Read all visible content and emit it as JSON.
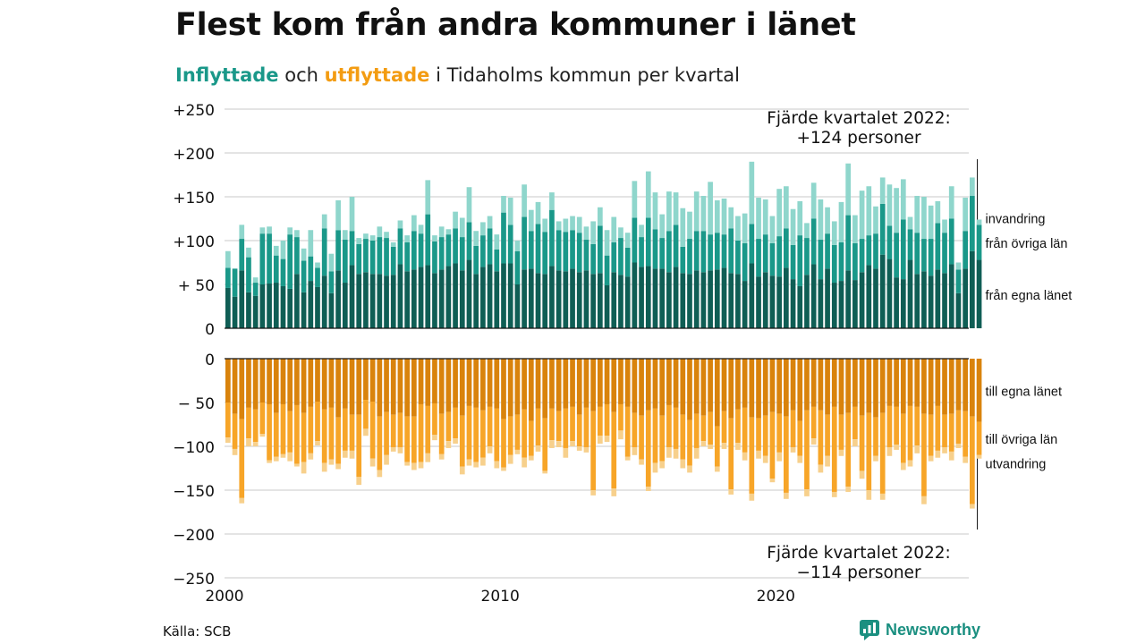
{
  "title": "Flest kom från andra kommuner i länet",
  "subtitle": {
    "in_word": "Inflyttade",
    "conj": "och",
    "out_word": "utflyttade",
    "rest": "i Tidaholms kommun per kvartal"
  },
  "source": "Källa: SCB",
  "brand": "Newsworthy",
  "colors": {
    "in_egna": "#0f5e55",
    "in_ovriga": "#1a9889",
    "in_invandring": "#8fd6cc",
    "out_egna": "#d9830c",
    "out_ovriga": "#f7a528",
    "out_utvandring": "#f7d08c"
  },
  "chart_data": {
    "type": "bar",
    "stacked": true,
    "x_start": 2000,
    "quarters_per_year": 4,
    "x_ticks": [
      "2000",
      "2010",
      "2020"
    ],
    "xlim": [
      2000,
      2027
    ],
    "grid": true,
    "top": {
      "ylim": [
        0,
        250
      ],
      "y_ticks": [
        "+250",
        "+200",
        "+150",
        "+100",
        "+ 50",
        "0"
      ],
      "series": [
        {
          "name": "från egna länet",
          "values": [
            46,
            36,
            66,
            41,
            37,
            50,
            51,
            52,
            48,
            45,
            62,
            41,
            54,
            47,
            60,
            40,
            66,
            52,
            72,
            62,
            64,
            62,
            62,
            60,
            61,
            73,
            65,
            67,
            70,
            72,
            63,
            67,
            71,
            74,
            66,
            78,
            62,
            70,
            73,
            65,
            74,
            74,
            50,
            67,
            68,
            63,
            62,
            71,
            66,
            65,
            68,
            64,
            66,
            62,
            63,
            49,
            64,
            61,
            59,
            75,
            70,
            71,
            68,
            68,
            64,
            70,
            63,
            62,
            66,
            64,
            66,
            67,
            69,
            63,
            62,
            54,
            74,
            59,
            64,
            60,
            59,
            69,
            56,
            48,
            61,
            73,
            56,
            68,
            52,
            54,
            66,
            55,
            64,
            72,
            68,
            84,
            79,
            58,
            56,
            78,
            62,
            65,
            60,
            67,
            63,
            73,
            40,
            68,
            88,
            78
          ]
        },
        {
          "name": "från övriga län",
          "values": [
            23,
            32,
            36,
            40,
            15,
            58,
            57,
            31,
            31,
            62,
            42,
            36,
            28,
            22,
            54,
            25,
            46,
            49,
            39,
            34,
            38,
            38,
            42,
            43,
            32,
            41,
            33,
            44,
            38,
            58,
            36,
            37,
            36,
            40,
            38,
            43,
            32,
            36,
            41,
            25,
            58,
            44,
            38,
            60,
            43,
            56,
            48,
            64,
            46,
            45,
            44,
            45,
            35,
            34,
            54,
            34,
            34,
            42,
            33,
            51,
            34,
            55,
            45,
            35,
            47,
            48,
            30,
            40,
            45,
            47,
            41,
            42,
            38,
            51,
            38,
            43,
            45,
            43,
            43,
            37,
            46,
            45,
            39,
            58,
            42,
            52,
            45,
            40,
            43,
            44,
            63,
            42,
            38,
            34,
            40,
            58,
            38,
            51,
            68,
            35,
            47,
            37,
            42,
            53,
            46,
            52,
            27,
            43,
            63,
            40
          ]
        },
        {
          "name": "invandring",
          "values": [
            19,
            0,
            16,
            11,
            6,
            7,
            8,
            11,
            21,
            8,
            8,
            14,
            30,
            6,
            16,
            20,
            34,
            11,
            39,
            7,
            6,
            6,
            12,
            7,
            5,
            9,
            8,
            18,
            10,
            39,
            7,
            12,
            6,
            19,
            22,
            40,
            17,
            15,
            14,
            17,
            19,
            31,
            12,
            37,
            24,
            25,
            15,
            20,
            10,
            15,
            16,
            18,
            15,
            26,
            21,
            29,
            29,
            12,
            17,
            42,
            14,
            53,
            42,
            27,
            45,
            37,
            44,
            31,
            45,
            40,
            60,
            37,
            41,
            24,
            28,
            34,
            71,
            47,
            40,
            31,
            54,
            48,
            41,
            39,
            17,
            41,
            46,
            30,
            27,
            46,
            59,
            32,
            55,
            56,
            31,
            30,
            47,
            51,
            46,
            14,
            42,
            48,
            38,
            25,
            15,
            37,
            8,
            38,
            21,
            6
          ]
        }
      ]
    },
    "bottom": {
      "ylim": [
        -250,
        0
      ],
      "y_ticks": [
        "0",
        "− 50",
        "−100",
        "−150",
        "−200",
        "−250"
      ],
      "series": [
        {
          "name": "till egna länet",
          "values": [
            -50,
            -63,
            -69,
            -56,
            -58,
            -50,
            -52,
            -62,
            -52,
            -60,
            -53,
            -62,
            -55,
            -49,
            -58,
            -56,
            -67,
            -57,
            -64,
            -64,
            -47,
            -49,
            -66,
            -61,
            -64,
            -62,
            -66,
            -66,
            -52,
            -54,
            -51,
            -63,
            -61,
            -56,
            -65,
            -54,
            -56,
            -59,
            -55,
            -57,
            -69,
            -66,
            -64,
            -58,
            -71,
            -57,
            -68,
            -57,
            -60,
            -57,
            -55,
            -64,
            -56,
            -60,
            -55,
            -52,
            -61,
            -52,
            -55,
            -62,
            -65,
            -59,
            -57,
            -65,
            -53,
            -56,
            -64,
            -70,
            -63,
            -65,
            -61,
            -77,
            -60,
            -68,
            -58,
            -56,
            -67,
            -68,
            -65,
            -61,
            -63,
            -66,
            -59,
            -71,
            -59,
            -55,
            -59,
            -64,
            -55,
            -64,
            -62,
            -55,
            -65,
            -62,
            -67,
            -62,
            -54,
            -55,
            -63,
            -54,
            -55,
            -63,
            -64,
            -54,
            -64,
            -63,
            -59,
            -60,
            -66,
            -72
          ]
        },
        {
          "name": "till övriga län",
          "values": [
            -40,
            -40,
            -90,
            -35,
            -37,
            -36,
            -64,
            -50,
            -57,
            -47,
            -67,
            -56,
            -53,
            -45,
            -61,
            -59,
            -53,
            -48,
            -41,
            -71,
            -33,
            -65,
            -61,
            -49,
            -37,
            -39,
            -52,
            -53,
            -66,
            -54,
            -36,
            -46,
            -33,
            -35,
            -58,
            -61,
            -62,
            -54,
            -45,
            -60,
            -55,
            -44,
            -40,
            -55,
            -40,
            -42,
            -60,
            -36,
            -34,
            -45,
            -39,
            -36,
            -45,
            -90,
            -33,
            -36,
            -87,
            -30,
            -57,
            -39,
            -50,
            -87,
            -62,
            -52,
            -48,
            -47,
            -51,
            -52,
            -39,
            -29,
            -37,
            -46,
            -36,
            -81,
            -38,
            -51,
            -87,
            -37,
            -46,
            -76,
            -44,
            -87,
            -42,
            -40,
            -90,
            -36,
            -62,
            -47,
            -97,
            -40,
            -84,
            -37,
            -63,
            -88,
            -44,
            -92,
            -47,
            -43,
            -56,
            -62,
            -44,
            -94,
            -47,
            -51,
            -37,
            -43,
            -38,
            -52,
            -100,
            -38
          ]
        },
        {
          "name": "utvandring",
          "values": [
            -6,
            -7,
            -6,
            -9,
            -5,
            -3,
            -3,
            -5,
            -4,
            -10,
            -3,
            -13,
            -7,
            -5,
            -10,
            -6,
            -6,
            -8,
            -9,
            -9,
            -8,
            -9,
            -8,
            -11,
            -5,
            -7,
            -4,
            -8,
            -7,
            -10,
            -6,
            -6,
            -8,
            -6,
            -9,
            -7,
            -6,
            -9,
            -8,
            -8,
            -4,
            -10,
            -5,
            -11,
            -5,
            -7,
            -3,
            -9,
            -7,
            -11,
            -6,
            -5,
            -6,
            -6,
            -9,
            -7,
            -9,
            -10,
            -4,
            -9,
            -6,
            -5,
            -11,
            -8,
            -12,
            -11,
            -10,
            -8,
            -12,
            -6,
            -5,
            -6,
            -7,
            -6,
            -8,
            -9,
            -8,
            -9,
            -8,
            -4,
            -10,
            -7,
            -6,
            -8,
            -8,
            -7,
            -9,
            -12,
            -6,
            -7,
            -6,
            -8,
            -9,
            -11,
            -6,
            -7,
            -10,
            -6,
            -8,
            -7,
            -9,
            -9,
            -6,
            -8,
            -7,
            -10,
            -5,
            -7,
            -5,
            -4
          ]
        }
      ]
    },
    "annotations": {
      "top_line1": "Fjärde kvartalet 2022:",
      "top_line2": "+124 personer",
      "bottom_line1": "Fjärde kvartalet 2022:",
      "bottom_line2": "−114 personer",
      "top_value": 124,
      "bottom_value": -114
    }
  }
}
